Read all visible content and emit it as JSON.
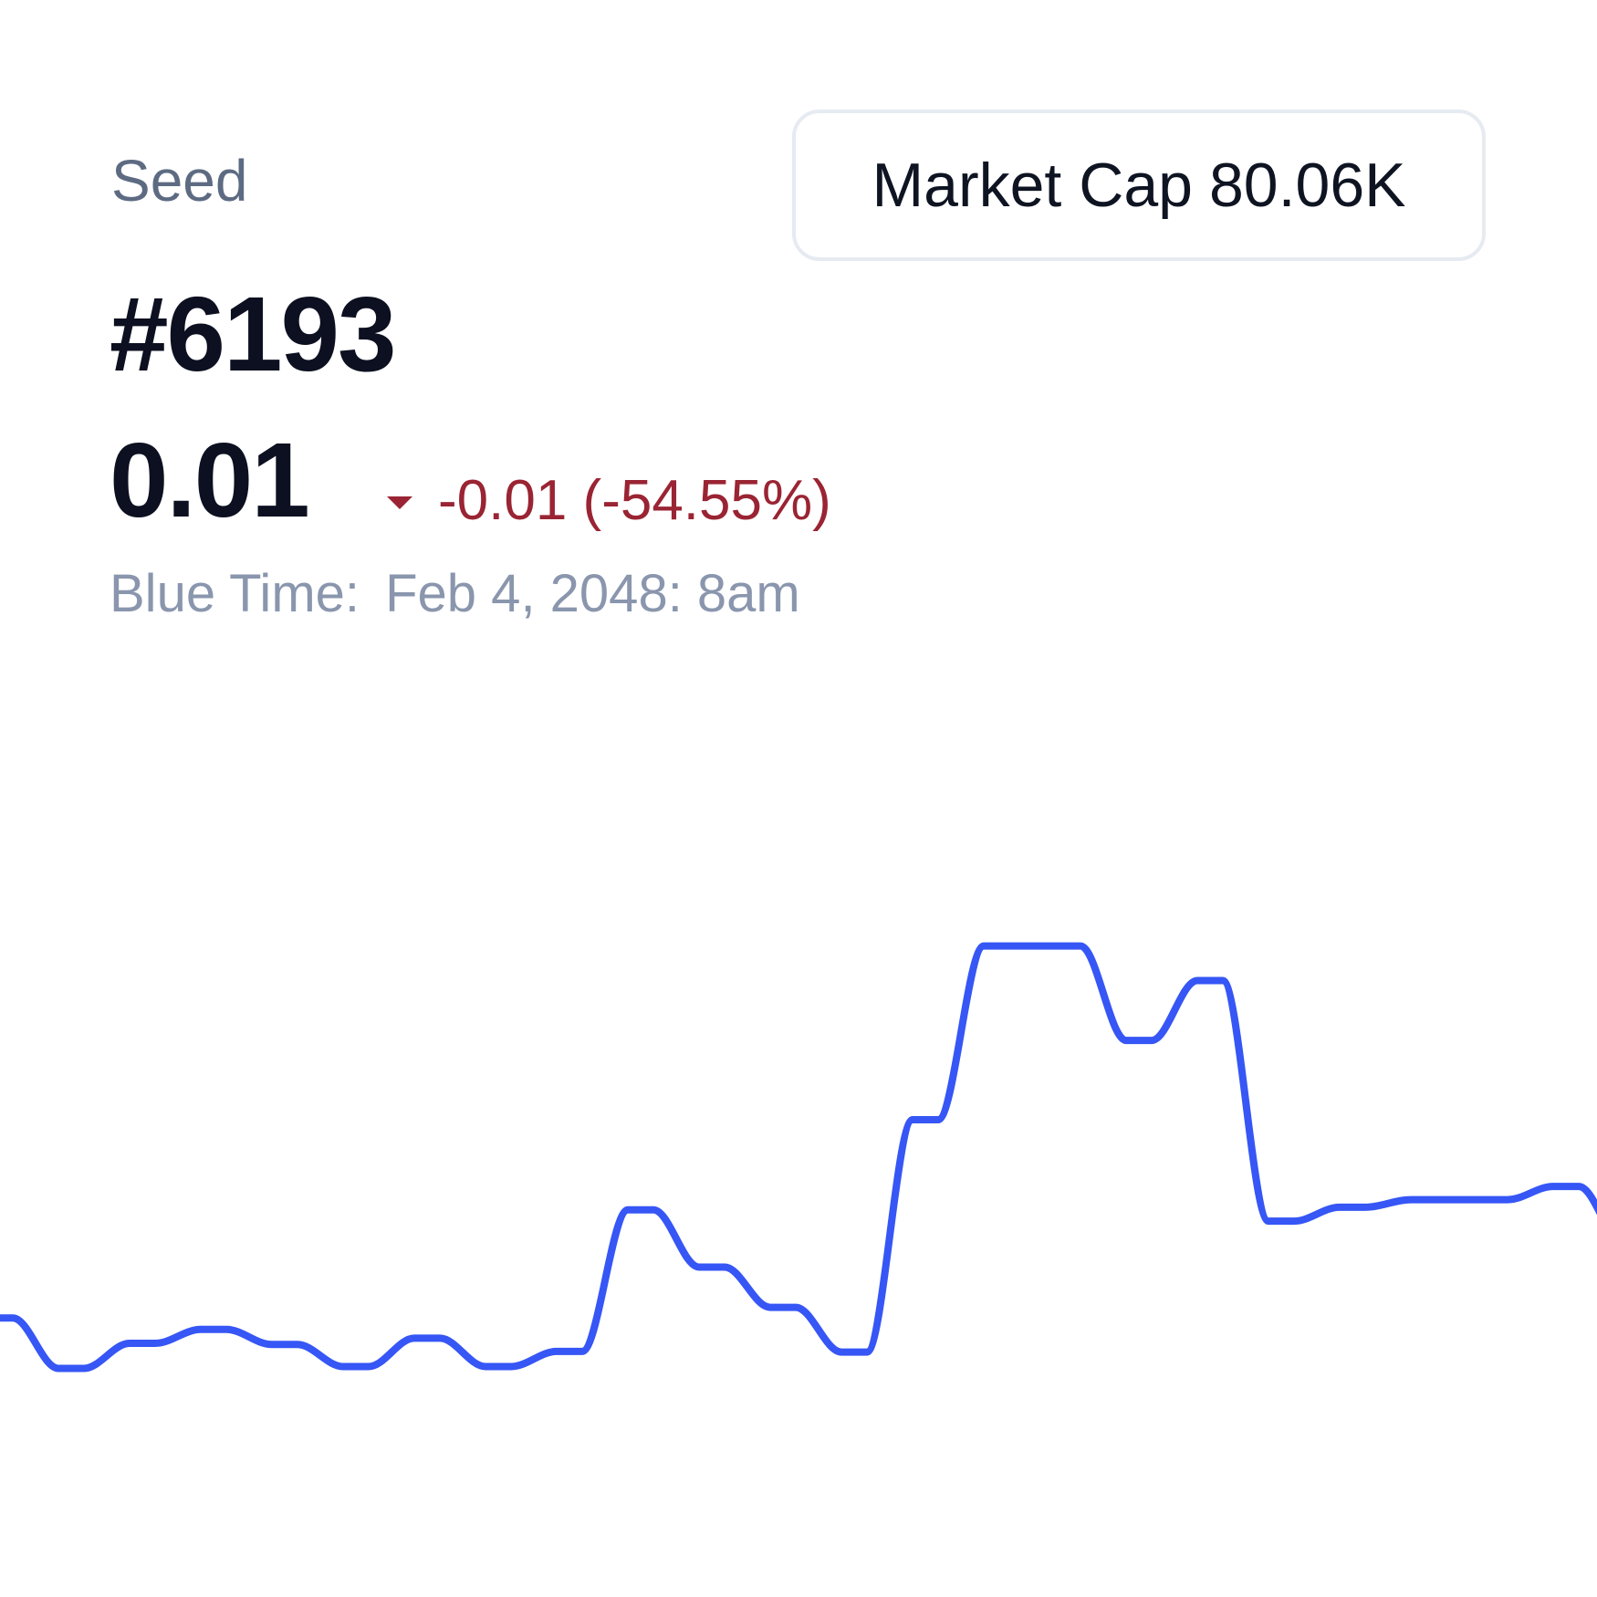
{
  "header": {
    "seed_label": "Seed",
    "market_cap_label": "Market Cap",
    "market_cap_value": "80.06K",
    "token_id": "#6193",
    "price": "0.01",
    "change": "-0.01 (-54.55%)",
    "time_label": "Blue Time:",
    "time_value": "Feb 4, 2048: 8am"
  },
  "colors": {
    "line": "#3656f5",
    "negative": "#9a2433"
  },
  "icons": {
    "change_direction": "triangle-down-icon"
  },
  "chart_data": {
    "type": "line",
    "title": "",
    "xlabel": "",
    "ylabel": "",
    "grid": false,
    "legend": "none",
    "x": [
      0,
      1,
      2,
      3,
      4,
      5,
      6,
      7,
      8,
      9,
      10,
      11,
      12,
      13,
      14,
      15,
      16,
      17,
      18,
      19,
      20,
      21,
      22,
      23
    ],
    "series": [
      {
        "values": [
          0.0185,
          0.0105,
          0.0145,
          0.0167,
          0.0143,
          0.0108,
          0.0153,
          0.0108,
          0.0132,
          0.0357,
          0.0266,
          0.0202,
          0.0131,
          0.05,
          0.0776,
          0.0776,
          0.0626,
          0.0721,
          0.0339,
          0.0361,
          0.0373,
          0.0373,
          0.0394,
          0.03
        ]
      }
    ]
  }
}
